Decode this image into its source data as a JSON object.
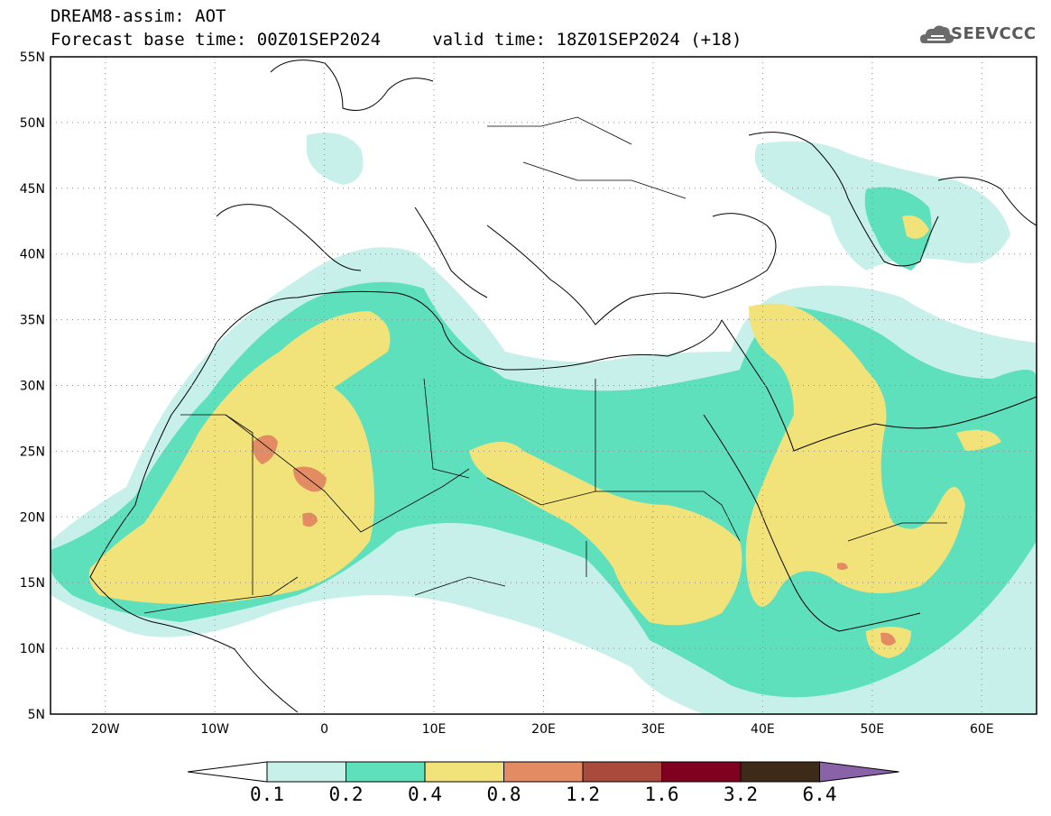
{
  "header": {
    "line1": "DREAM8-assim: AOT",
    "line2": "Forecast base time: 00Z01SEP2024     valid time: 18Z01SEP2024 (+18)"
  },
  "logo": {
    "text": "SEEVCCC",
    "icon": "cloud-icon"
  },
  "map": {
    "lat_labels": [
      "55N",
      "50N",
      "45N",
      "40N",
      "35N",
      "30N",
      "25N",
      "20N",
      "15N",
      "10N",
      "5N"
    ],
    "lon_labels": [
      "20W",
      "10W",
      "0",
      "10E",
      "20E",
      "30E",
      "40E",
      "50E",
      "60E"
    ],
    "lon_range": [
      -25,
      65
    ],
    "lat_range": [
      5,
      55
    ],
    "grid": "dotted"
  },
  "colorbar": {
    "ticks": [
      "0.1",
      "0.2",
      "0.4",
      "0.8",
      "1.2",
      "1.6",
      "3.2",
      "6.4"
    ],
    "colors": [
      "#ffffff",
      "#c7f0ea",
      "#5fe0bd",
      "#f2e27a",
      "#e38b63",
      "#a94a3d",
      "#800020",
      "#3d2a18",
      "#8a62a8"
    ]
  },
  "palette": {
    "c01": "#c7f0ea",
    "c02": "#5fe0bd",
    "c04": "#f2e27a",
    "c08": "#e38b63"
  }
}
